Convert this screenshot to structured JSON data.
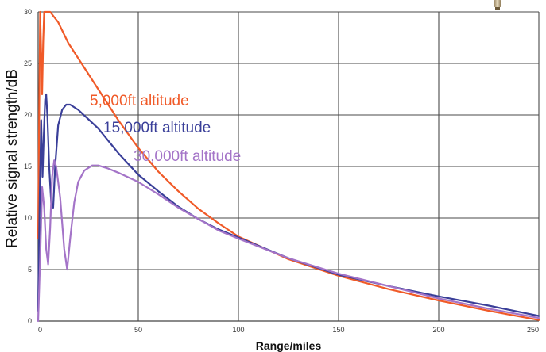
{
  "chart_data": {
    "type": "line",
    "title": "",
    "xlabel": "Range/miles",
    "ylabel": "Relative signal strength/dB",
    "xlim": [
      0,
      250
    ],
    "ylim": [
      0,
      30
    ],
    "x_ticks": [
      0,
      50,
      100,
      150,
      200,
      250
    ],
    "y_ticks": [
      0,
      5,
      10,
      15,
      20,
      25,
      30
    ],
    "grid": true,
    "legend": "labels placed next to curves",
    "series": [
      {
        "name": "5,000ft altitude",
        "color": "#f05a28",
        "points": [
          [
            0,
            8
          ],
          [
            0.5,
            20
          ],
          [
            1,
            30
          ],
          [
            1.5,
            26
          ],
          [
            2,
            22
          ],
          [
            2.5,
            27
          ],
          [
            3,
            30
          ],
          [
            6,
            30
          ],
          [
            10,
            29
          ],
          [
            15,
            27
          ],
          [
            20,
            25.5
          ],
          [
            25,
            24
          ],
          [
            30,
            22.5
          ],
          [
            40,
            19.5
          ],
          [
            50,
            16.8
          ],
          [
            60,
            14.5
          ],
          [
            70,
            12.6
          ],
          [
            80,
            10.9
          ],
          [
            90,
            9.5
          ],
          [
            100,
            8.2
          ],
          [
            125,
            6.0
          ],
          [
            150,
            4.4
          ],
          [
            175,
            3.1
          ],
          [
            200,
            2.0
          ],
          [
            225,
            1.0
          ],
          [
            250,
            0.1
          ]
        ]
      },
      {
        "name": "15,000ft altitude",
        "color": "#3a3f99",
        "points": [
          [
            0,
            1
          ],
          [
            0.8,
            12
          ],
          [
            1.5,
            19.5
          ],
          [
            2.2,
            14
          ],
          [
            2.8,
            18
          ],
          [
            3.5,
            21.5
          ],
          [
            4,
            22
          ],
          [
            4.6,
            20
          ],
          [
            5.5,
            15
          ],
          [
            6.5,
            11.5
          ],
          [
            7.5,
            11
          ],
          [
            8.5,
            15
          ],
          [
            10,
            19
          ],
          [
            12,
            20.5
          ],
          [
            14,
            21
          ],
          [
            16,
            21
          ],
          [
            20,
            20.5
          ],
          [
            25,
            19.6
          ],
          [
            30,
            18.7
          ],
          [
            40,
            16.3
          ],
          [
            50,
            14.2
          ],
          [
            60,
            12.6
          ],
          [
            70,
            11.1
          ],
          [
            80,
            9.9
          ],
          [
            90,
            8.9
          ],
          [
            100,
            8.1
          ],
          [
            125,
            6.1
          ],
          [
            150,
            4.5
          ],
          [
            175,
            3.4
          ],
          [
            200,
            2.4
          ],
          [
            225,
            1.5
          ],
          [
            250,
            0.5
          ]
        ]
      },
      {
        "name": "30,000ft altitude",
        "color": "#a474c8",
        "points": [
          [
            0,
            0
          ],
          [
            1,
            6
          ],
          [
            2,
            13
          ],
          [
            3,
            11
          ],
          [
            4,
            7
          ],
          [
            5,
            5.5
          ],
          [
            6,
            9
          ],
          [
            7,
            14
          ],
          [
            8,
            15.6
          ],
          [
            9,
            15
          ],
          [
            11,
            12
          ],
          [
            13,
            7
          ],
          [
            14.5,
            5
          ],
          [
            16,
            8
          ],
          [
            18,
            11.5
          ],
          [
            20,
            13.5
          ],
          [
            23,
            14.6
          ],
          [
            27,
            15.1
          ],
          [
            30,
            15.1
          ],
          [
            35,
            14.8
          ],
          [
            40,
            14.4
          ],
          [
            50,
            13.5
          ],
          [
            60,
            12.3
          ],
          [
            70,
            11.0
          ],
          [
            80,
            9.9
          ],
          [
            90,
            8.8
          ],
          [
            100,
            8.0
          ],
          [
            125,
            6.1
          ],
          [
            150,
            4.6
          ],
          [
            175,
            3.4
          ],
          [
            200,
            2.2
          ],
          [
            225,
            1.2
          ],
          [
            250,
            0.3
          ]
        ]
      }
    ]
  }
}
